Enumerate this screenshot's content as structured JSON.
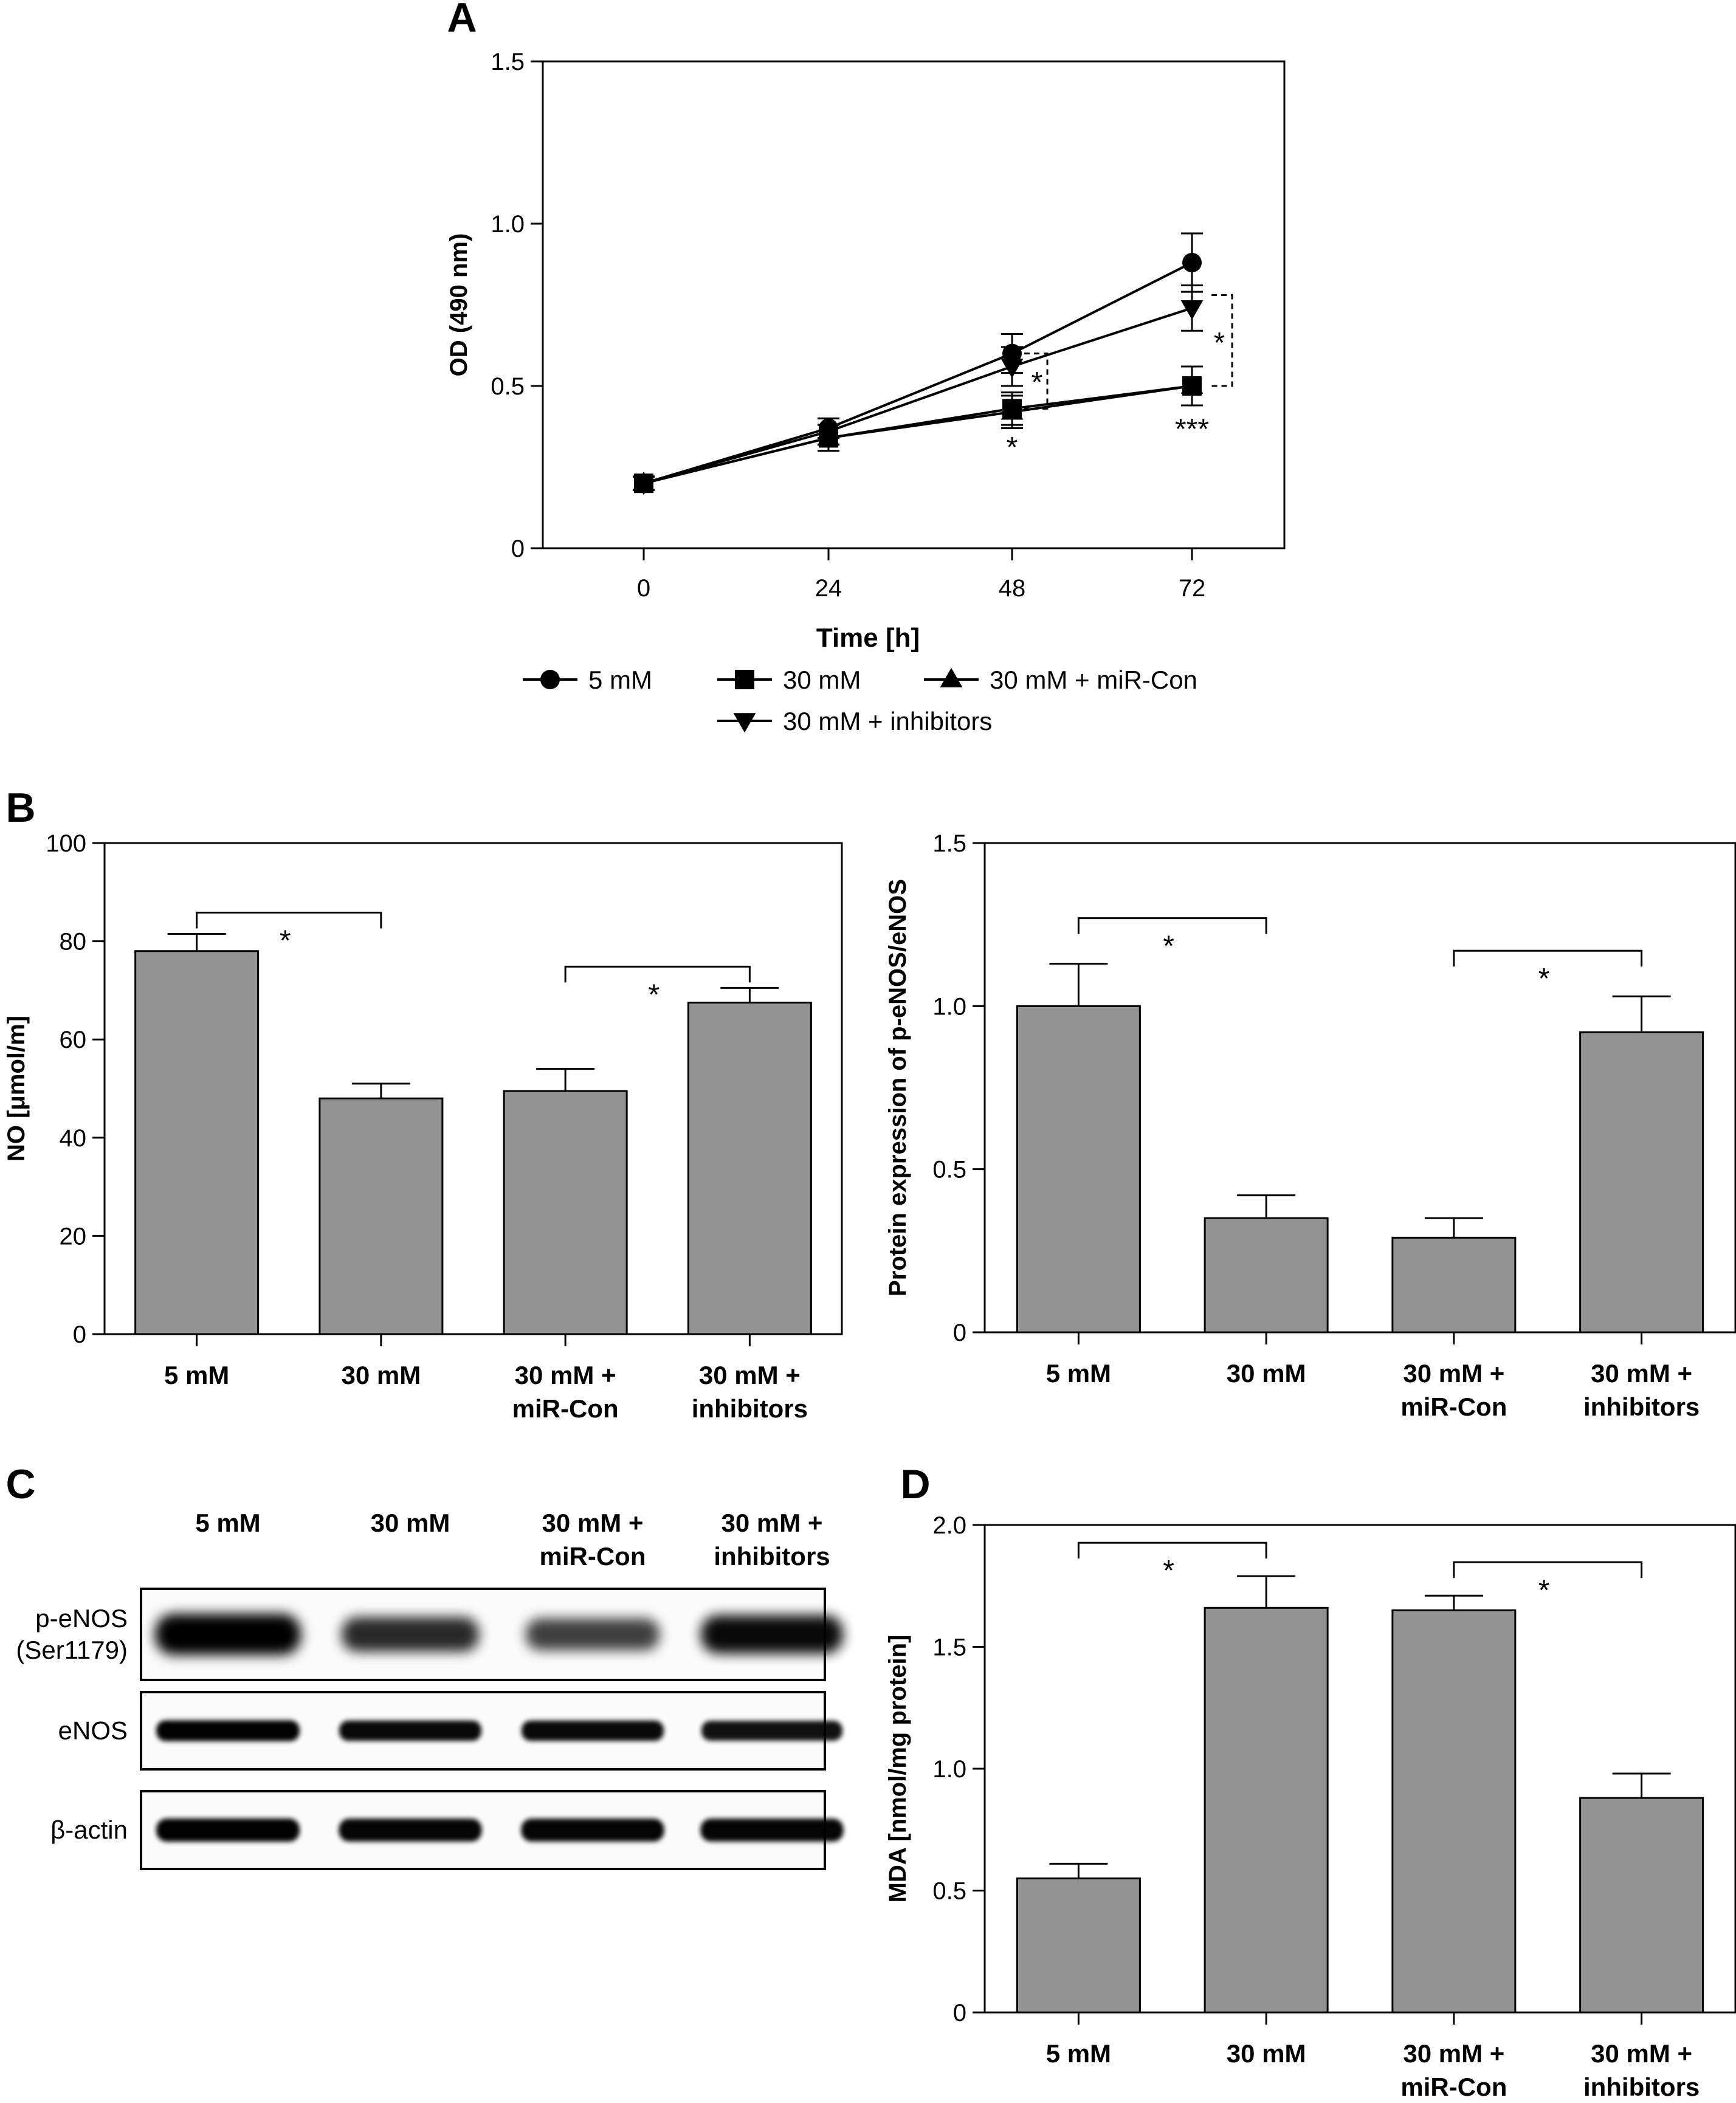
{
  "panel_labels": [
    "A",
    "B",
    "C",
    "D"
  ],
  "colors": {
    "bar_fill": "#939393",
    "axis": "#000000",
    "blot_frame": "#000000"
  },
  "chart_data": [
    {
      "id": "A",
      "type": "line",
      "title": "",
      "xlabel": "Time [h]",
      "ylabel": "OD (490 nm)",
      "x": [
        0,
        24,
        48,
        72
      ],
      "x_ticks": [
        "0",
        "24",
        "48",
        "72"
      ],
      "ylim": [
        0,
        1.5
      ],
      "y_ticks": [
        "0",
        "0.5",
        "1.0",
        "1.5"
      ],
      "grid": false,
      "legend_placement": "bottom",
      "series": [
        {
          "name": "5 mM",
          "marker": "circle",
          "values": [
            0.2,
            0.37,
            0.6,
            0.88
          ],
          "errors": [
            0.02,
            0.03,
            0.06,
            0.09
          ]
        },
        {
          "name": "30 mM",
          "marker": "square",
          "values": [
            0.2,
            0.34,
            0.43,
            0.5
          ],
          "errors": [
            0.02,
            0.04,
            0.05,
            0.06
          ]
        },
        {
          "name": "30 mM + miR-Con",
          "marker": "triangle-up",
          "values": [
            0.2,
            0.34,
            0.42,
            0.5
          ],
          "errors": [
            0.02,
            0.04,
            0.05,
            0.06
          ]
        },
        {
          "name": "30 mM + inhibitors",
          "marker": "triangle-down",
          "values": [
            0.2,
            0.36,
            0.56,
            0.74
          ],
          "errors": [
            0.02,
            0.04,
            0.06,
            0.07
          ]
        }
      ],
      "annotations": [
        "*",
        "*",
        "*",
        "***"
      ]
    },
    {
      "id": "B-left",
      "type": "bar",
      "title": "",
      "xlabel": "",
      "ylabel": "NO [μmol/m]",
      "categories": [
        "5 mM",
        "30 mM",
        "30 mM + miR-Con",
        "30 mM + inhibitors"
      ],
      "category_lines": [
        [
          "5 mM"
        ],
        [
          "30 mM"
        ],
        [
          "30 mM +",
          "miR-Con"
        ],
        [
          "30 mM +",
          "inhibitors"
        ]
      ],
      "values": [
        78,
        48,
        49.5,
        67.5
      ],
      "errors": [
        3.5,
        3,
        4.5,
        3
      ],
      "ylim": [
        0,
        100
      ],
      "y_ticks": [
        "0",
        "20",
        "40",
        "60",
        "80",
        "100"
      ],
      "significance": [
        {
          "from": 0,
          "to": 1,
          "label": "*"
        },
        {
          "from": 2,
          "to": 3,
          "label": "*"
        }
      ]
    },
    {
      "id": "B-right",
      "type": "bar",
      "title": "",
      "xlabel": "",
      "ylabel": "Protein expression of p-eNOS/eNOS",
      "categories": [
        "5 mM",
        "30 mM",
        "30 mM + miR-Con",
        "30 mM + inhibitors"
      ],
      "category_lines": [
        [
          "5 mM"
        ],
        [
          "30 mM"
        ],
        [
          "30 mM +",
          "miR-Con"
        ],
        [
          "30 mM +",
          "inhibitors"
        ]
      ],
      "values": [
        1.0,
        0.35,
        0.29,
        0.92
      ],
      "errors": [
        0.13,
        0.07,
        0.06,
        0.11
      ],
      "ylim": [
        0,
        1.5
      ],
      "y_ticks": [
        "0",
        "0.5",
        "1.0",
        "1.5"
      ],
      "significance": [
        {
          "from": 0,
          "to": 1,
          "label": "*"
        },
        {
          "from": 2,
          "to": 3,
          "label": "*"
        }
      ]
    },
    {
      "id": "D",
      "type": "bar",
      "title": "",
      "xlabel": "",
      "ylabel": "MDA [nmol/mg protein]",
      "categories": [
        "5 mM",
        "30 mM",
        "30 mM + miR-Con",
        "30 mM + inhibitors"
      ],
      "category_lines": [
        [
          "5 mM"
        ],
        [
          "30 mM"
        ],
        [
          "30 mM +",
          "miR-Con"
        ],
        [
          "30 mM +",
          "inhibitors"
        ]
      ],
      "values": [
        0.55,
        1.66,
        1.65,
        0.88
      ],
      "errors": [
        0.06,
        0.13,
        0.06,
        0.1
      ],
      "ylim": [
        0,
        2.0
      ],
      "y_ticks": [
        "0",
        "0.5",
        "1.0",
        "1.5",
        "2.0"
      ],
      "significance": [
        {
          "from": 0,
          "to": 1,
          "label": "*"
        },
        {
          "from": 2,
          "to": 3,
          "label": "*"
        }
      ]
    }
  ],
  "western_blot": {
    "lanes": [
      [
        "5 mM"
      ],
      [
        "30 mM"
      ],
      [
        "30 mM +",
        "miR-Con"
      ],
      [
        "30 mM +",
        "inhibitors"
      ]
    ],
    "rows": [
      {
        "label_lines": [
          "p-eNOS",
          "(Ser1179)"
        ],
        "intensity": [
          1.0,
          0.65,
          0.5,
          0.85
        ]
      },
      {
        "label_lines": [
          "eNOS"
        ],
        "intensity": [
          0.9,
          0.85,
          0.85,
          0.8
        ]
      },
      {
        "label_lines": [
          "β-actin"
        ],
        "intensity": [
          0.9,
          0.88,
          0.88,
          0.88
        ]
      }
    ]
  }
}
